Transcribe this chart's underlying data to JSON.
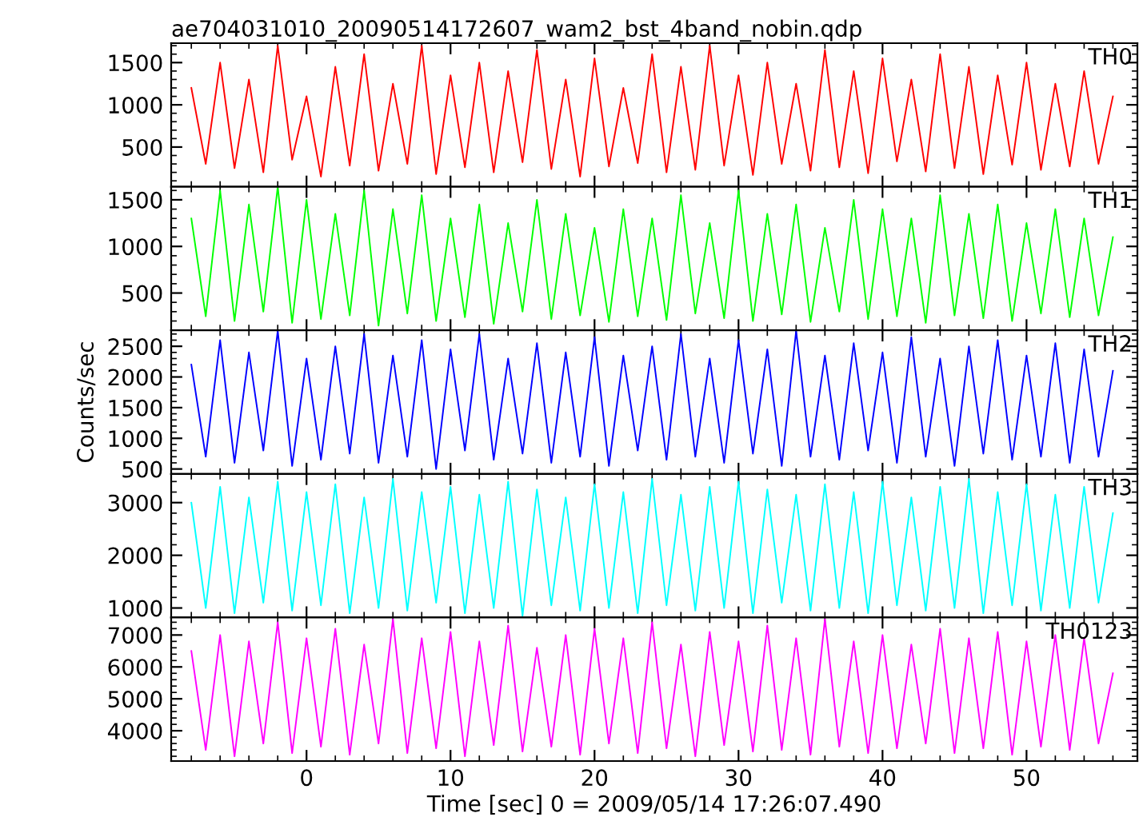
{
  "chart_data": [
    {
      "type": "line",
      "title": "ae704031010_20090514172607_wam2_bst_4band_nobin.qdp",
      "tick_labels": "y",
      "x": [
        -8,
        -7,
        -6,
        -5,
        -4,
        -3,
        -2,
        -1,
        0,
        1,
        2,
        3,
        4,
        5,
        6,
        7,
        8,
        9,
        10,
        11,
        12,
        13,
        14,
        15,
        16,
        17,
        18,
        19,
        20,
        21,
        22,
        23,
        24,
        25,
        26,
        27,
        28,
        29,
        30,
        31,
        32,
        33,
        34,
        35,
        36,
        37,
        38,
        39,
        40,
        41,
        42,
        43,
        44,
        45,
        46,
        47,
        48,
        49,
        50,
        51,
        52,
        53,
        54,
        55,
        56
      ],
      "xlim": [
        -9.4,
        57.7
      ],
      "xticks": [
        0,
        10,
        20,
        30,
        40,
        50
      ],
      "ylim": [
        30,
        1730
      ],
      "yticks": [
        500,
        1000,
        1500
      ],
      "series": [
        {
          "name": "TH0",
          "color": "#ff0000",
          "values": [
            1200,
            300,
            1500,
            250,
            1300,
            200,
            1700,
            350,
            1100,
            150,
            1450,
            280,
            1600,
            220,
            1250,
            300,
            1700,
            180,
            1350,
            260,
            1500,
            200,
            1400,
            320,
            1650,
            240,
            1300,
            150,
            1550,
            270,
            1200,
            310,
            1600,
            200,
            1450,
            230,
            1700,
            280,
            1350,
            170,
            1500,
            300,
            1250,
            220,
            1650,
            260,
            1400,
            190,
            1550,
            330,
            1300,
            210,
            1600,
            250,
            1450,
            180,
            1350,
            290,
            1500,
            230,
            1250,
            270,
            1400,
            300,
            1100
          ]
        }
      ]
    },
    {
      "type": "line",
      "tick_labels": "y",
      "x": [
        -8,
        -7,
        -6,
        -5,
        -4,
        -3,
        -2,
        -1,
        0,
        1,
        2,
        3,
        4,
        5,
        6,
        7,
        8,
        9,
        10,
        11,
        12,
        13,
        14,
        15,
        16,
        17,
        18,
        19,
        20,
        21,
        22,
        23,
        24,
        25,
        26,
        27,
        28,
        29,
        30,
        31,
        32,
        33,
        34,
        35,
        36,
        37,
        38,
        39,
        40,
        41,
        42,
        43,
        44,
        45,
        46,
        47,
        48,
        49,
        50,
        51,
        52,
        53,
        54,
        55,
        56
      ],
      "xlim": [
        -9.4,
        57.7
      ],
      "xticks": [
        0,
        10,
        20,
        30,
        40,
        50
      ],
      "ylim": [
        100,
        1640
      ],
      "yticks": [
        500,
        1000,
        1500
      ],
      "series": [
        {
          "name": "TH1",
          "color": "#00ff00",
          "values": [
            1300,
            250,
            1600,
            200,
            1450,
            300,
            1640,
            180,
            1500,
            220,
            1350,
            260,
            1600,
            150,
            1400,
            280,
            1550,
            200,
            1300,
            240,
            1450,
            170,
            1250,
            300,
            1500,
            220,
            1350,
            260,
            1200,
            190,
            1400,
            250,
            1300,
            210,
            1550,
            280,
            1250,
            230,
            1600,
            200,
            1350,
            270,
            1450,
            190,
            1200,
            300,
            1500,
            220,
            1400,
            250,
            1300,
            180,
            1550,
            260,
            1350,
            230,
            1450,
            200,
            1250,
            280,
            1400,
            240,
            1300,
            260,
            1100
          ]
        }
      ]
    },
    {
      "type": "line",
      "tick_labels": "y",
      "ylabel": "Counts/sec",
      "x": [
        -8,
        -7,
        -6,
        -5,
        -4,
        -3,
        -2,
        -1,
        0,
        1,
        2,
        3,
        4,
        5,
        6,
        7,
        8,
        9,
        10,
        11,
        12,
        13,
        14,
        15,
        16,
        17,
        18,
        19,
        20,
        21,
        22,
        23,
        24,
        25,
        26,
        27,
        28,
        29,
        30,
        31,
        32,
        33,
        34,
        35,
        36,
        37,
        38,
        39,
        40,
        41,
        42,
        43,
        44,
        45,
        46,
        47,
        48,
        49,
        50,
        51,
        52,
        53,
        54,
        55,
        56
      ],
      "xlim": [
        -9.4,
        57.7
      ],
      "xticks": [
        0,
        10,
        20,
        30,
        40,
        50
      ],
      "ylim": [
        420,
        2760
      ],
      "yticks": [
        500,
        1000,
        1500,
        2000,
        2500
      ],
      "series": [
        {
          "name": "TH2",
          "color": "#0000ff",
          "values": [
            2200,
            700,
            2600,
            600,
            2400,
            800,
            2750,
            550,
            2300,
            650,
            2500,
            750,
            2700,
            600,
            2350,
            700,
            2600,
            500,
            2450,
            800,
            2700,
            650,
            2300,
            750,
            2550,
            600,
            2400,
            700,
            2650,
            550,
            2350,
            800,
            2500,
            650,
            2700,
            700,
            2300,
            600,
            2600,
            750,
            2450,
            550,
            2750,
            700,
            2350,
            650,
            2550,
            800,
            2400,
            600,
            2650,
            700,
            2300,
            550,
            2500,
            750,
            2600,
            650,
            2350,
            700,
            2550,
            600,
            2450,
            700,
            2100
          ]
        }
      ]
    },
    {
      "type": "line",
      "tick_labels": "y",
      "x": [
        -8,
        -7,
        -6,
        -5,
        -4,
        -3,
        -2,
        -1,
        0,
        1,
        2,
        3,
        4,
        5,
        6,
        7,
        8,
        9,
        10,
        11,
        12,
        13,
        14,
        15,
        16,
        17,
        18,
        19,
        20,
        21,
        22,
        23,
        24,
        25,
        26,
        27,
        28,
        29,
        30,
        31,
        32,
        33,
        34,
        35,
        36,
        37,
        38,
        39,
        40,
        41,
        42,
        43,
        44,
        45,
        46,
        47,
        48,
        49,
        50,
        51,
        52,
        53,
        54,
        55,
        56
      ],
      "xlim": [
        -9.4,
        57.7
      ],
      "xticks": [
        0,
        10,
        20,
        30,
        40,
        50
      ],
      "ylim": [
        820,
        3545
      ],
      "yticks": [
        1000,
        2000,
        3000
      ],
      "series": [
        {
          "name": "TH3",
          "color": "#00ffff",
          "values": [
            3000,
            1000,
            3300,
            900,
            3100,
            1100,
            3400,
            950,
            3200,
            1050,
            3350,
            900,
            3100,
            1000,
            3450,
            950,
            3200,
            1100,
            3300,
            900,
            3150,
            1000,
            3400,
            850,
            3250,
            1050,
            3100,
            950,
            3350,
            1000,
            3200,
            900,
            3450,
            1050,
            3150,
            950,
            3300,
            1000,
            3400,
            900,
            3250,
            1100,
            3150,
            950,
            3350,
            1000,
            3200,
            900,
            3400,
            1050,
            3100,
            950,
            3300,
            1000,
            3450,
            900,
            3200,
            1050,
            3350,
            950,
            3150,
            1000,
            3300,
            1100,
            2800
          ]
        }
      ]
    },
    {
      "type": "line",
      "xlabel": "Time [sec] 0 = 2009/05/14 17:26:07.490",
      "x": [
        -8,
        -7,
        -6,
        -5,
        -4,
        -3,
        -2,
        -1,
        0,
        1,
        2,
        3,
        4,
        5,
        6,
        7,
        8,
        9,
        10,
        11,
        12,
        13,
        14,
        15,
        16,
        17,
        18,
        19,
        20,
        21,
        22,
        23,
        24,
        25,
        26,
        27,
        28,
        29,
        30,
        31,
        32,
        33,
        34,
        35,
        36,
        37,
        38,
        39,
        40,
        41,
        42,
        43,
        44,
        45,
        46,
        47,
        48,
        49,
        50,
        51,
        52,
        53,
        54,
        55,
        56
      ],
      "xlim": [
        -9.4,
        57.7
      ],
      "xticks": [
        0,
        10,
        20,
        30,
        40,
        50
      ],
      "ylim": [
        3050,
        7550
      ],
      "yticks": [
        4000,
        5000,
        6000,
        7000
      ],
      "series": [
        {
          "name": "TH0123",
          "color": "#ff00ff",
          "values": [
            6500,
            3400,
            7000,
            3200,
            6800,
            3600,
            7400,
            3300,
            6900,
            3500,
            7200,
            3250,
            6700,
            3600,
            7500,
            3300,
            6900,
            3450,
            7100,
            3200,
            6800,
            3550,
            7300,
            3350,
            6600,
            3500,
            7000,
            3250,
            7200,
            3600,
            6900,
            3300,
            7400,
            3450,
            6700,
            3200,
            7100,
            3550,
            6800,
            3350,
            7300,
            3400,
            6900,
            3250,
            7500,
            3500,
            6800,
            3300,
            7000,
            3450,
            6700,
            3600,
            7200,
            3300,
            6900,
            3450,
            7100,
            3250,
            6800,
            3500,
            7000,
            3400,
            6900,
            3600,
            5800
          ]
        }
      ]
    }
  ]
}
